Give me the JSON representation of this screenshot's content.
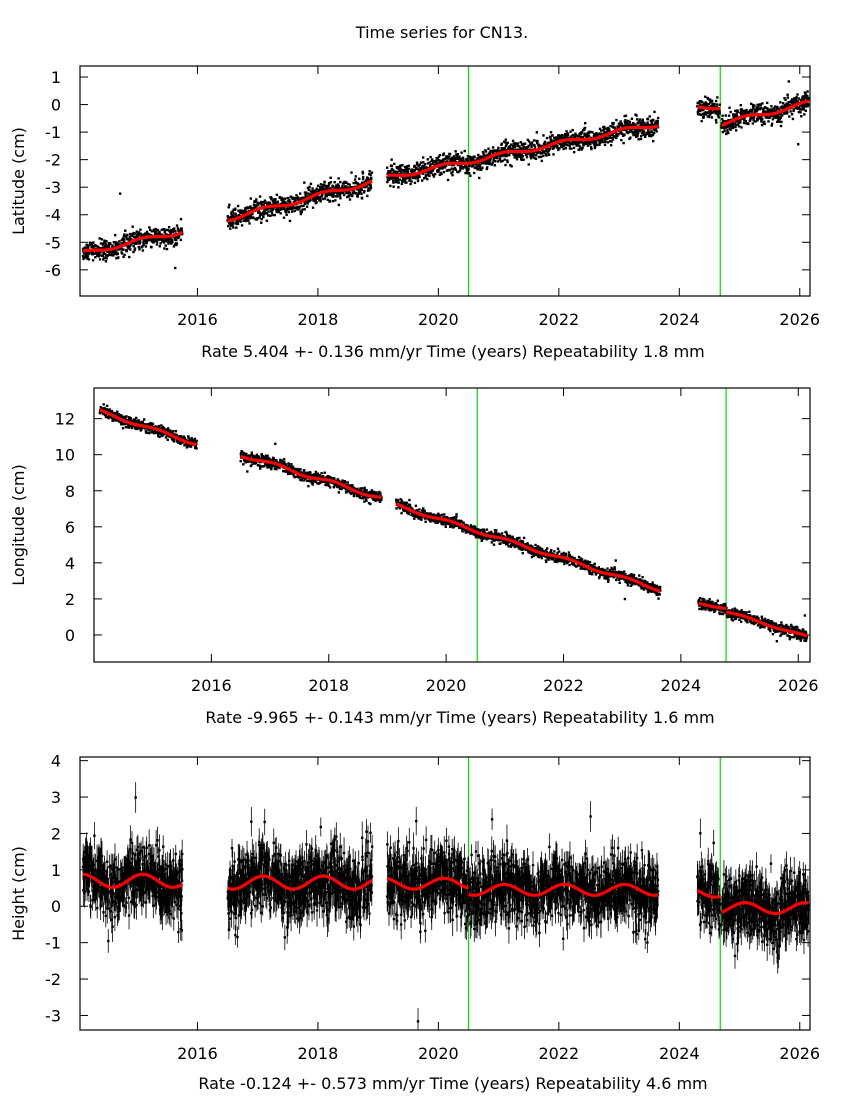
{
  "title": "Time series for CN13.",
  "colors": {
    "observed": "#000000",
    "model": "#ff0000",
    "offset_line": "#00dd00"
  },
  "chart_data": [
    {
      "type": "scatter",
      "ylabel": "Latitude (cm)",
      "xlabel": "Time (years)",
      "rate_text": "Rate 5.404 +- 0.136 mm/yr",
      "repeatability_text": "Repeatability 1.8 mm",
      "xlim": [
        2014.05,
        2026.17
      ],
      "ylim": [
        -6.95,
        1.4
      ],
      "xticks": [
        2016,
        2018,
        2020,
        2022,
        2024,
        2026
      ],
      "yticks": [
        -6,
        -5,
        -4,
        -3,
        -2,
        -1,
        0,
        1
      ],
      "offset_epochs": [
        2020.5,
        2024.68
      ],
      "noise_cm": 0.18,
      "error_bars": false,
      "model_segments": [
        {
          "start": 2014.1,
          "end": 2015.75,
          "y_start": -5.4,
          "y_end": -4.6,
          "seasonal_amp": 0.08
        },
        {
          "start": 2016.5,
          "end": 2018.9,
          "y_start": -4.15,
          "y_end": -2.8,
          "seasonal_amp": 0.08
        },
        {
          "start": 2019.15,
          "end": 2023.65,
          "y_start": -2.65,
          "y_end": -0.7,
          "seasonal_amp": 0.08
        },
        {
          "start": 2024.3,
          "end": 2024.68,
          "y_start": -0.1,
          "y_end": -0.1,
          "seasonal_amp": 0.05
        },
        {
          "start": 2024.7,
          "end": 2026.15,
          "y_start": -0.7,
          "y_end": 0.05,
          "seasonal_amp": 0.08
        }
      ]
    },
    {
      "type": "scatter",
      "ylabel": "Longitude (cm)",
      "xlabel": "Time (years)",
      "rate_text": "Rate -9.965 +- 0.143 mm/yr",
      "repeatability_text": "Repeatability 1.6 mm",
      "xlim": [
        2014.0,
        2026.2
      ],
      "ylim": [
        -1.5,
        13.7
      ],
      "xticks": [
        2016,
        2018,
        2020,
        2022,
        2024,
        2026
      ],
      "yticks": [
        0,
        2,
        4,
        6,
        8,
        10,
        12
      ],
      "offset_epochs": [
        2020.53,
        2024.77
      ],
      "noise_cm": 0.15,
      "error_bars": false,
      "model_segments": [
        {
          "start": 2014.1,
          "end": 2015.75,
          "y_start": 12.4,
          "y_end": 10.6,
          "seasonal_amp": 0.08
        },
        {
          "start": 2016.5,
          "end": 2018.9,
          "y_start": 10.0,
          "y_end": 7.6,
          "seasonal_amp": 0.1
        },
        {
          "start": 2019.15,
          "end": 2023.65,
          "y_start": 7.2,
          "y_end": 2.5,
          "seasonal_amp": 0.08
        },
        {
          "start": 2024.3,
          "end": 2024.77,
          "y_start": 1.75,
          "y_end": 1.5,
          "seasonal_amp": 0.05
        },
        {
          "start": 2024.77,
          "end": 2026.15,
          "y_start": 1.3,
          "y_end": -0.1,
          "seasonal_amp": 0.05
        }
      ]
    },
    {
      "type": "scatter",
      "ylabel": "Height (cm)",
      "xlabel": "Time (years)",
      "rate_text": "Rate -0.124 +- 0.573 mm/yr",
      "repeatability_text": "Repeatability 4.6 mm",
      "xlim": [
        2014.05,
        2026.17
      ],
      "ylim": [
        -3.4,
        4.1
      ],
      "xticks": [
        2016,
        2018,
        2020,
        2022,
        2024,
        2026
      ],
      "yticks": [
        -3,
        -2,
        -1,
        0,
        1,
        2,
        3,
        4
      ],
      "offset_epochs": [
        2020.5,
        2024.68
      ],
      "noise_cm": 0.45,
      "error_bars": true,
      "model_segments": [
        {
          "start": 2014.1,
          "end": 2015.75,
          "y_start": 0.7,
          "y_end": 0.7,
          "seasonal_amp": 0.18
        },
        {
          "start": 2016.5,
          "end": 2018.9,
          "y_start": 0.65,
          "y_end": 0.65,
          "seasonal_amp": 0.18
        },
        {
          "start": 2019.15,
          "end": 2020.5,
          "y_start": 0.62,
          "y_end": 0.62,
          "seasonal_amp": 0.15
        },
        {
          "start": 2020.5,
          "end": 2023.65,
          "y_start": 0.45,
          "y_end": 0.45,
          "seasonal_amp": 0.15
        },
        {
          "start": 2024.3,
          "end": 2024.68,
          "y_start": 0.4,
          "y_end": 0.4,
          "seasonal_amp": 0.15
        },
        {
          "start": 2024.7,
          "end": 2026.15,
          "y_start": -0.05,
          "y_end": -0.05,
          "seasonal_amp": 0.15
        }
      ]
    }
  ]
}
